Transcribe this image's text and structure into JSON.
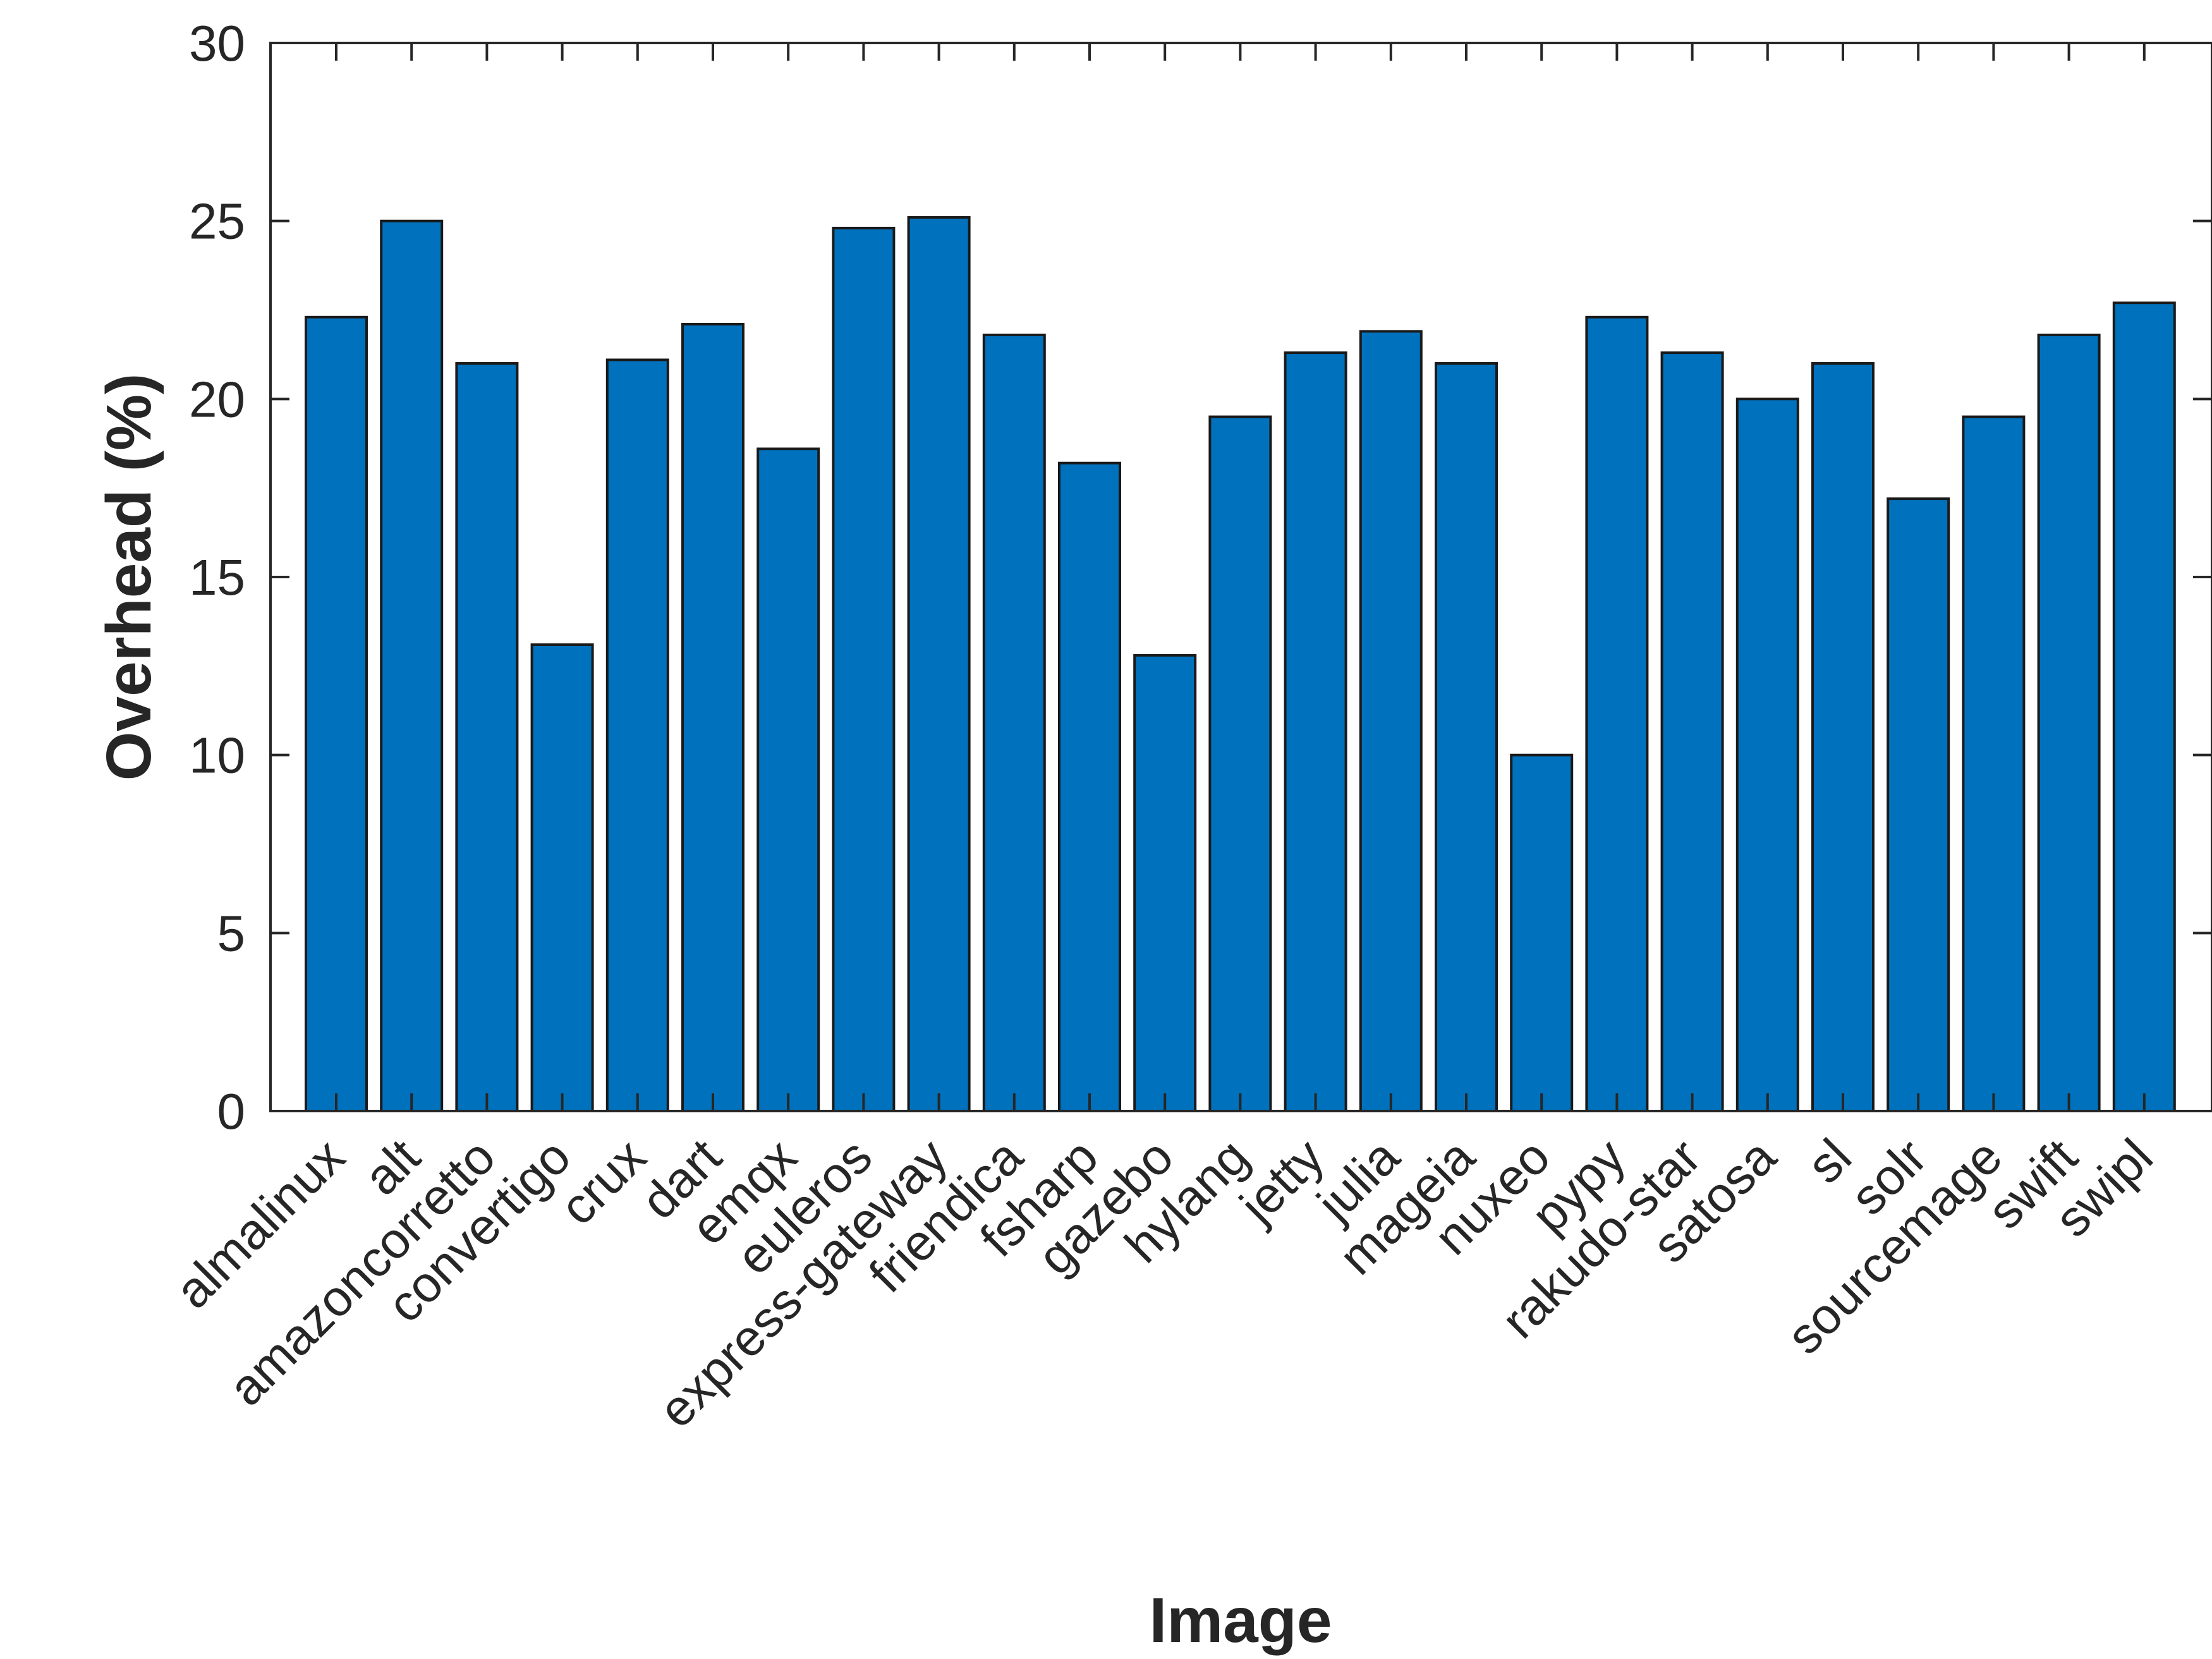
{
  "chart_data": {
    "type": "bar",
    "title": "",
    "xlabel": "Image",
    "ylabel": "Overhead (%)",
    "ylim": [
      0,
      30
    ],
    "yticks": [
      0,
      5,
      10,
      15,
      20,
      25,
      30
    ],
    "grid": false,
    "colors": {
      "bar": "#0072bd",
      "edge": "#1a1a1a",
      "axis": "#262626"
    },
    "categories": [
      "almalinux",
      "alt",
      "amazoncorretto",
      "convertigo",
      "crux",
      "dart",
      "emqx",
      "euleros",
      "express-gateway",
      "friendica",
      "fsharp",
      "gazebo",
      "hylang",
      "jetty",
      "julia",
      "mageia",
      "nuxeo",
      "pypy",
      "rakudo-star",
      "satosa",
      "sl",
      "solr",
      "sourcemage",
      "swift",
      "swipl"
    ],
    "values": [
      22.3,
      25.0,
      21.0,
      13.1,
      21.1,
      22.1,
      18.6,
      24.8,
      25.1,
      21.8,
      18.2,
      12.8,
      19.5,
      21.3,
      21.9,
      21.0,
      10.0,
      22.3,
      21.3,
      20.0,
      21.0,
      17.2,
      19.5,
      21.8,
      22.7
    ]
  }
}
